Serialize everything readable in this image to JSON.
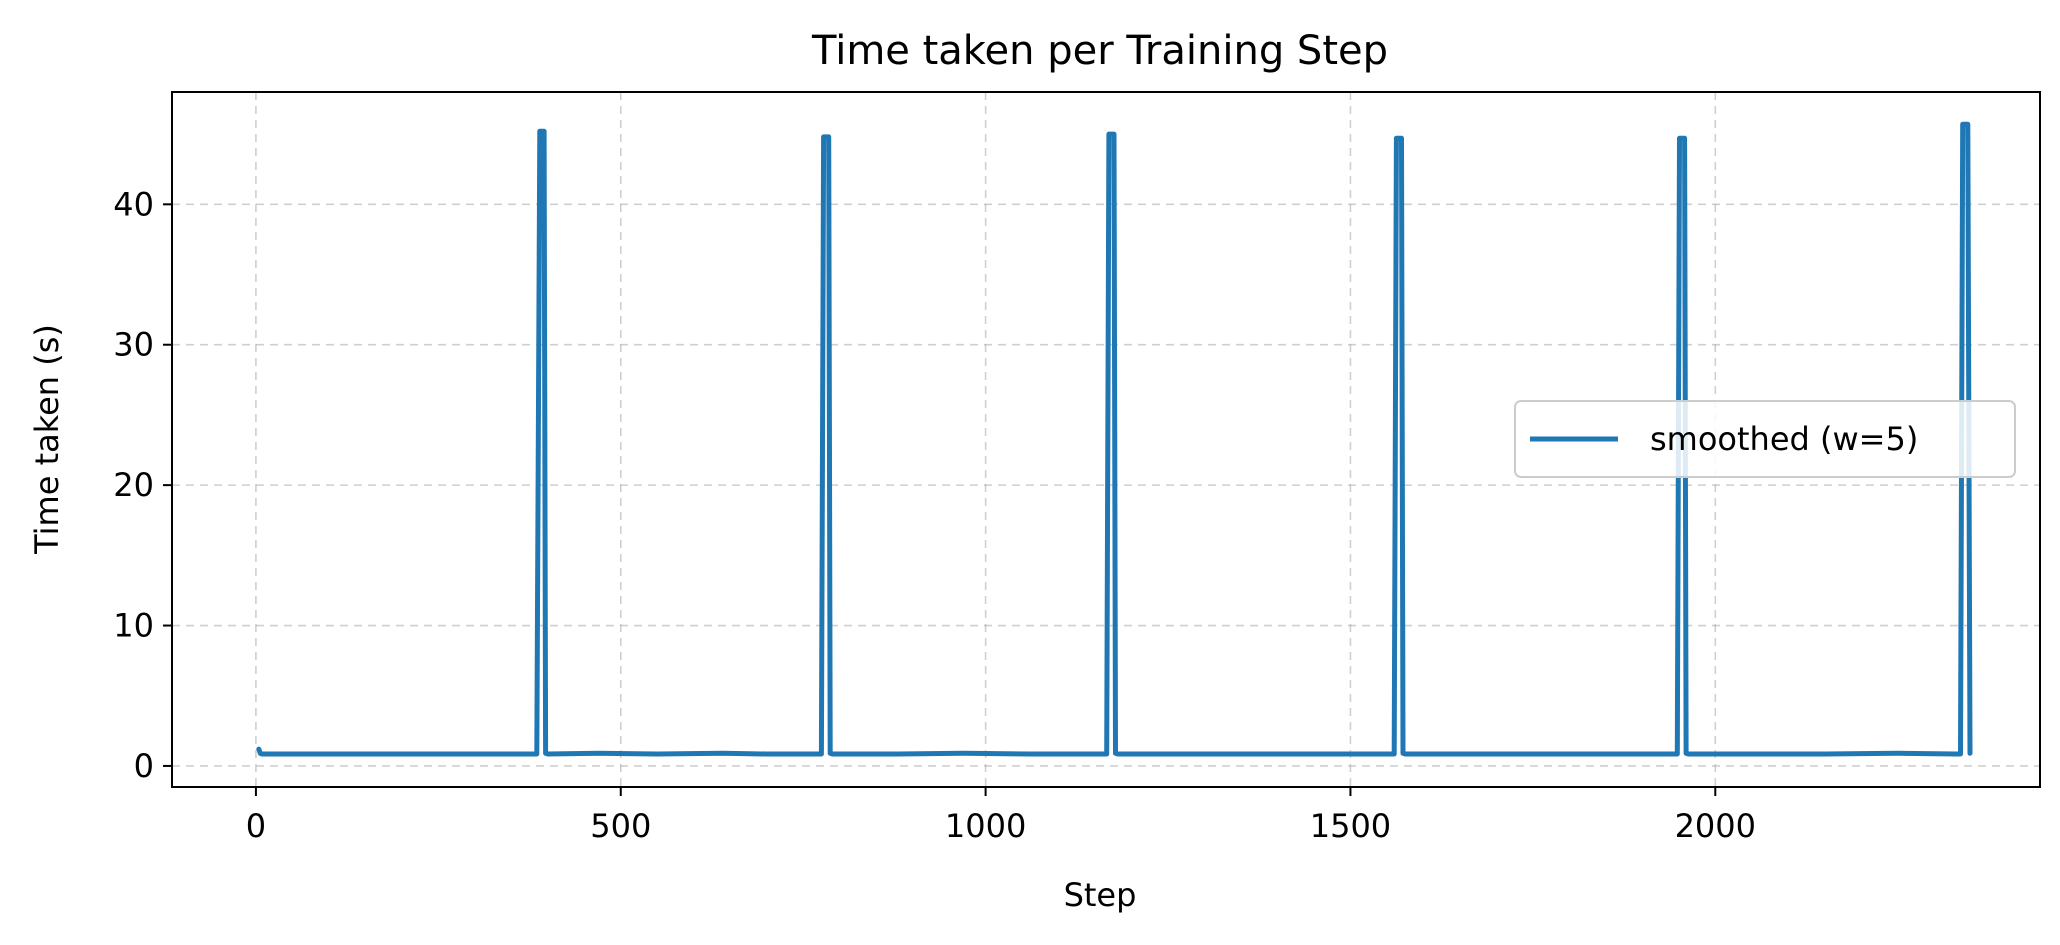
{
  "chart_data": {
    "type": "line",
    "title": "Time taken per Training Step",
    "xlabel": "Step",
    "ylabel": "Time taken (s)",
    "xlim": [
      -115,
      2445
    ],
    "ylim": [
      -1.5,
      48
    ],
    "xticks": [
      0,
      500,
      1000,
      1500,
      2000
    ],
    "yticks": [
      0,
      10,
      20,
      30,
      40
    ],
    "xtick_labels": [
      "0",
      "500",
      "1000",
      "1500",
      "2000"
    ],
    "ytick_labels": [
      "0",
      "10",
      "20",
      "30",
      "40"
    ],
    "grid": true,
    "legend": {
      "position": "right",
      "entries": [
        "smoothed (w=5)"
      ]
    },
    "colors": {
      "series": "#1f77b4"
    },
    "series": [
      {
        "name": "smoothed (w=5)",
        "x": [
          4,
          6,
          8,
          100,
          200,
          300,
          385,
          389,
          391,
          395,
          397,
          400,
          470,
          550,
          640,
          700,
          775,
          778,
          781,
          785,
          787,
          790,
          880,
          970,
          1060,
          1160,
          1166,
          1169,
          1172,
          1176,
          1178,
          1181,
          1270,
          1360,
          1450,
          1555,
          1560,
          1563,
          1566,
          1570,
          1572,
          1575,
          1660,
          1750,
          1850,
          1945,
          1948,
          1951,
          1954,
          1958,
          1960,
          1963,
          2050,
          2150,
          2250,
          2330,
          2336,
          2339,
          2342,
          2346,
          2349
        ],
        "y": [
          1.2,
          0.9,
          0.85,
          0.85,
          0.85,
          0.85,
          0.85,
          45.2,
          45.2,
          45.2,
          0.9,
          0.85,
          0.9,
          0.85,
          0.9,
          0.85,
          0.85,
          44.8,
          44.8,
          44.8,
          0.9,
          0.85,
          0.85,
          0.9,
          0.85,
          0.85,
          0.85,
          45.0,
          45.0,
          45.0,
          0.9,
          0.85,
          0.85,
          0.85,
          0.85,
          0.85,
          0.85,
          44.7,
          44.7,
          44.7,
          0.9,
          0.85,
          0.85,
          0.85,
          0.85,
          0.85,
          0.85,
          44.7,
          44.7,
          44.7,
          0.9,
          0.85,
          0.85,
          0.85,
          0.9,
          0.85,
          0.85,
          45.7,
          45.7,
          45.7,
          0.9
        ]
      }
    ]
  }
}
